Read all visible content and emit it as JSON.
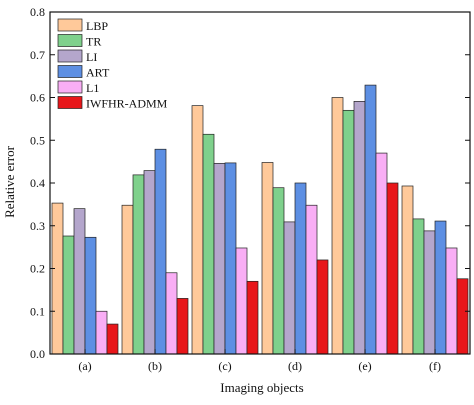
{
  "chart_data": {
    "type": "bar",
    "xlabel": "Imaging objects",
    "ylabel": "Relative error",
    "ylim": [
      0,
      0.8
    ],
    "yticks": [
      "0.0",
      "0.1",
      "0.2",
      "0.3",
      "0.4",
      "0.5",
      "0.6",
      "0.7",
      "0.8"
    ],
    "grid": false,
    "legend_position": "top-left",
    "categories": [
      "(a)",
      "(b)",
      "(c)",
      "(d)",
      "(e)",
      "(f)"
    ],
    "series": [
      {
        "name": "LBP",
        "color": "#FFC99A",
        "values": [
          0.353,
          0.348,
          0.581,
          0.448,
          0.6,
          0.393
        ]
      },
      {
        "name": "TR",
        "color": "#7FD18C",
        "values": [
          0.276,
          0.419,
          0.514,
          0.389,
          0.57,
          0.316
        ]
      },
      {
        "name": "LI",
        "color": "#B4A6CC",
        "values": [
          0.34,
          0.429,
          0.446,
          0.309,
          0.591,
          0.288
        ]
      },
      {
        "name": "ART",
        "color": "#5D8FE3",
        "values": [
          0.273,
          0.479,
          0.447,
          0.4,
          0.629,
          0.311
        ]
      },
      {
        "name": "L1",
        "color": "#F9AEF5",
        "values": [
          0.1,
          0.19,
          0.248,
          0.348,
          0.47,
          0.248
        ]
      },
      {
        "name": "IWFHR-ADMM",
        "color": "#E8161A",
        "values": [
          0.07,
          0.13,
          0.17,
          0.22,
          0.4,
          0.176
        ]
      }
    ]
  }
}
